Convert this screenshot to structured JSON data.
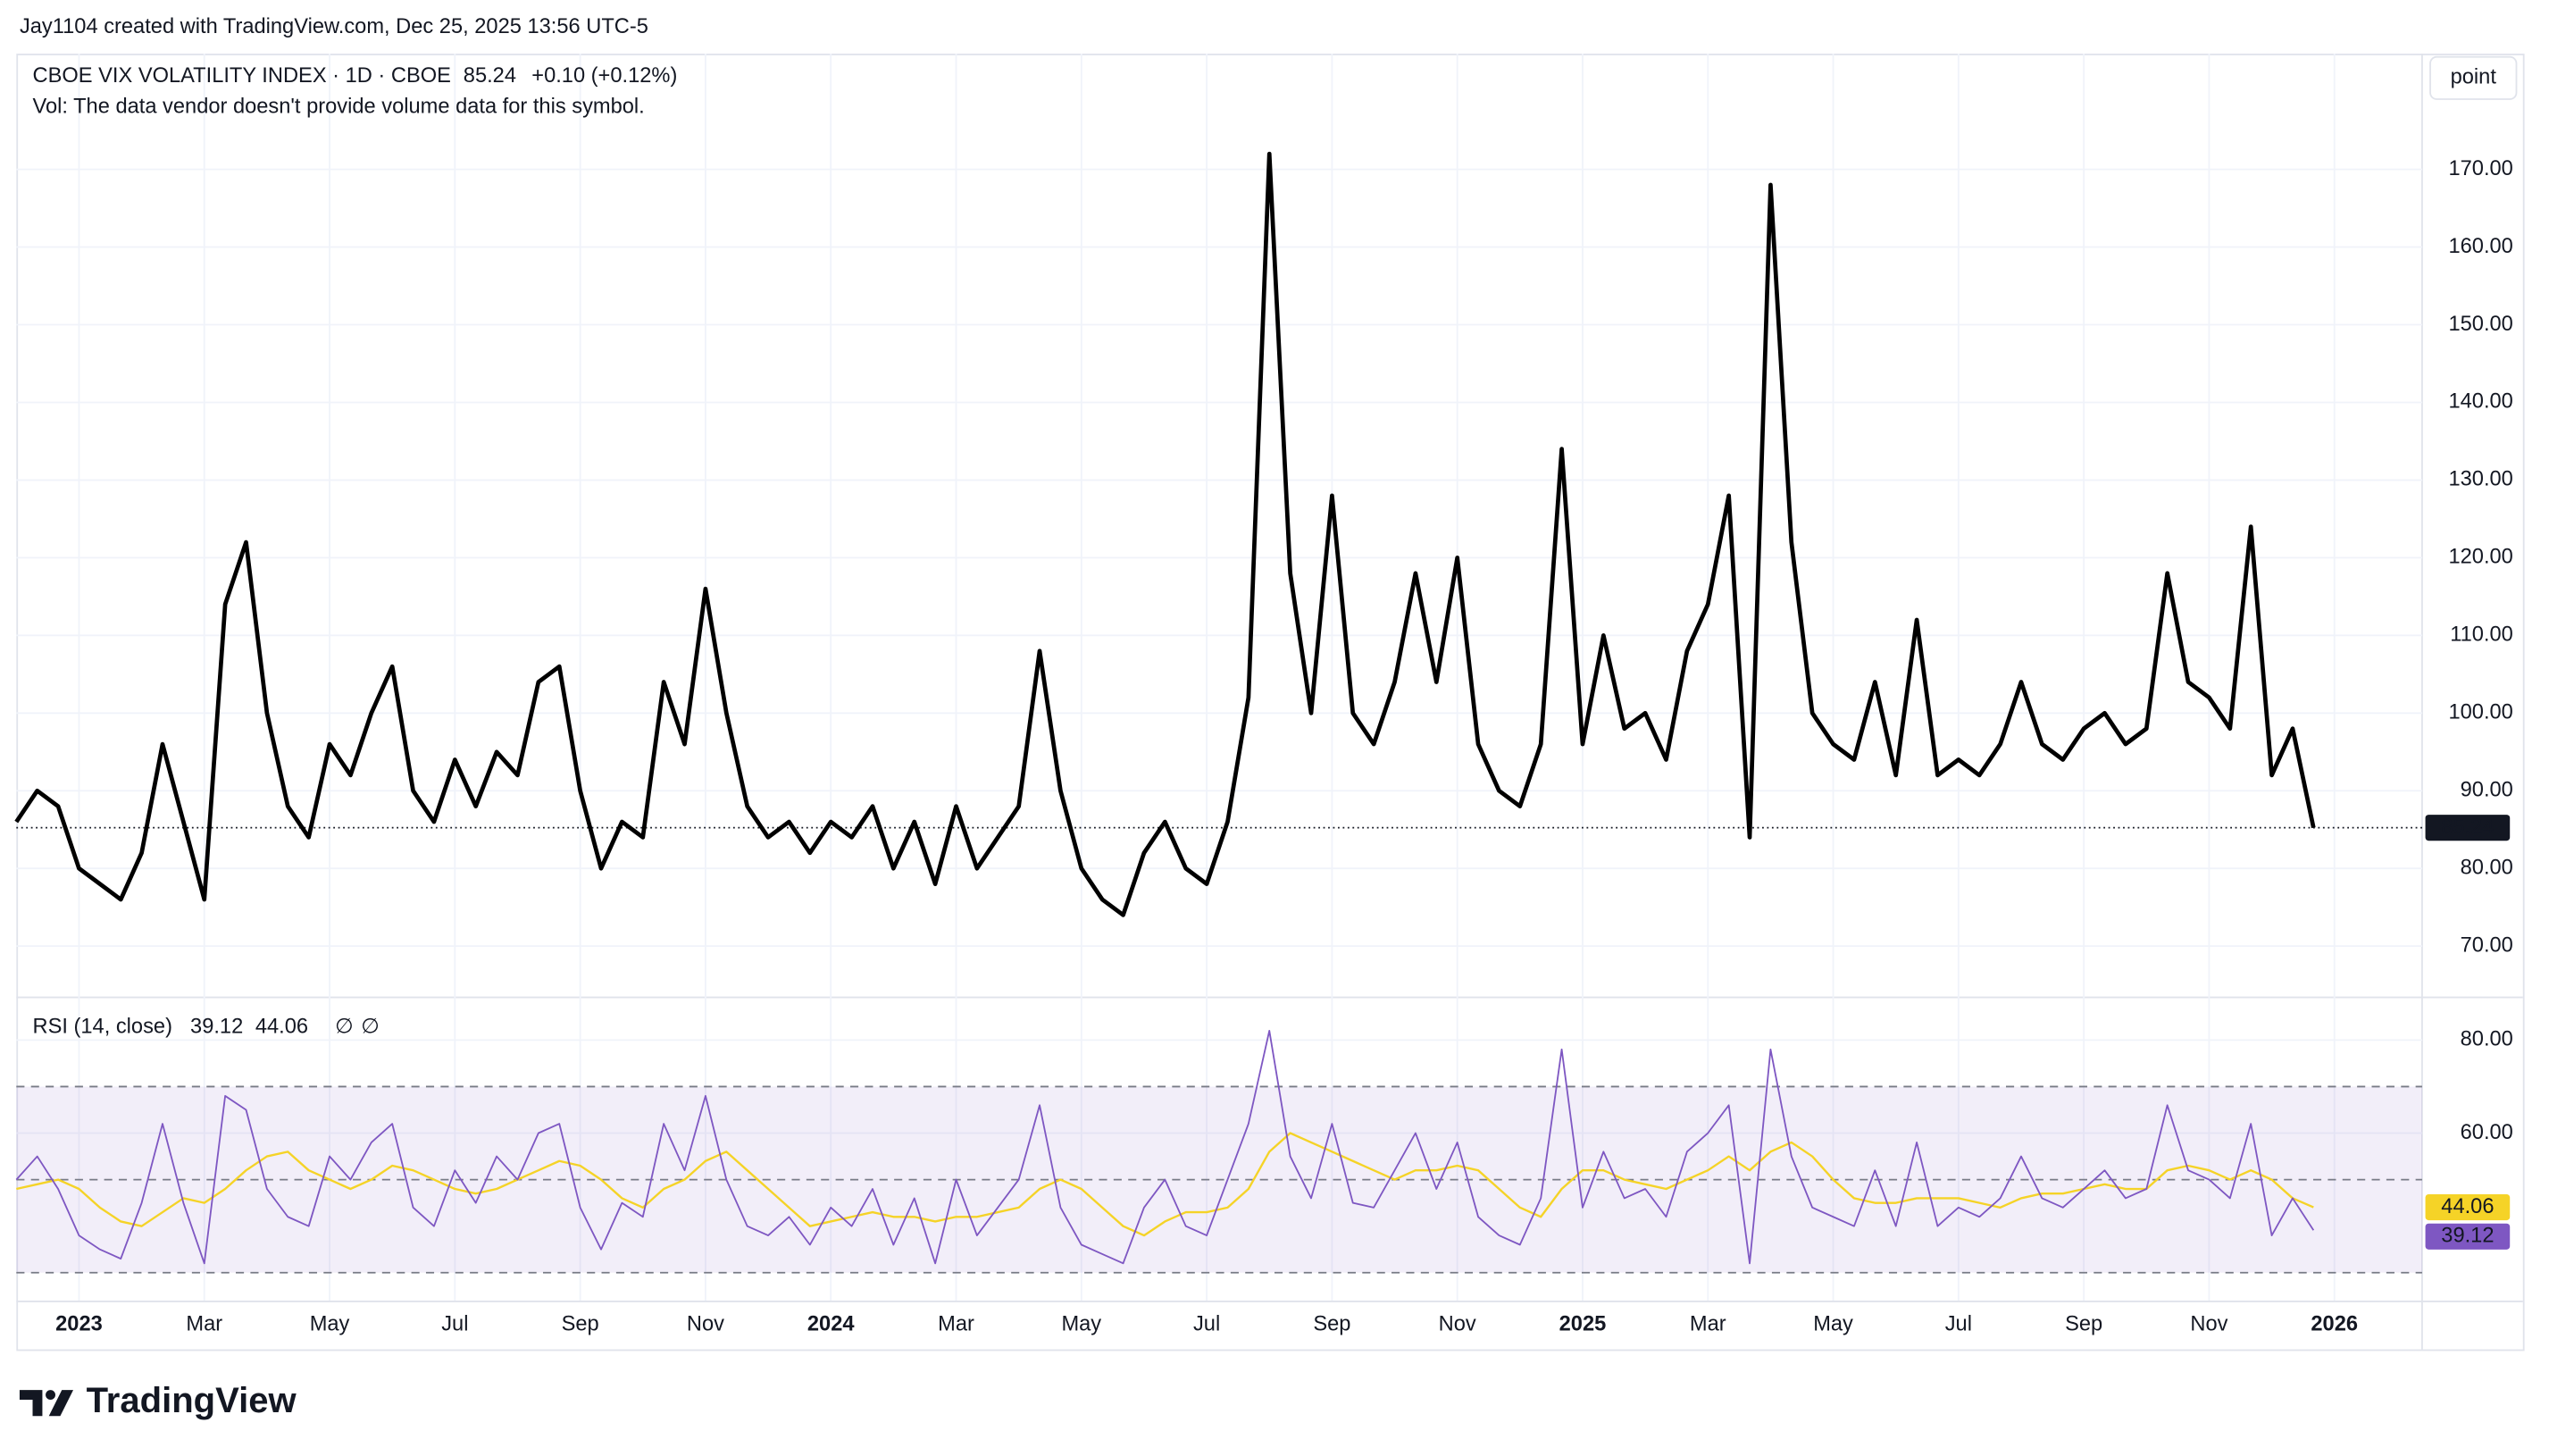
{
  "header": {
    "credit": "Jay1104 created with TradingView.com, Dec 25, 2025 13:56 UTC-5",
    "button": "point"
  },
  "logo": "TradingView",
  "chart_data": [
    {
      "type": "line",
      "title": "CBOE VIX VOLATILITY INDEX · 1D · CBOE",
      "last_price": 85.24,
      "change": "+0.10 (+0.12%)",
      "subtitle": "Vol: The data vendor doesn't provide volume data for this symbol.",
      "color": "#000000",
      "values": [
        86,
        90,
        88,
        80,
        78,
        76,
        82,
        96,
        86,
        76,
        114,
        122,
        100,
        88,
        84,
        96,
        92,
        100,
        106,
        90,
        86,
        94,
        88,
        95,
        92,
        104,
        106,
        90,
        80,
        86,
        84,
        104,
        96,
        116,
        100,
        88,
        84,
        86,
        82,
        86,
        84,
        88,
        80,
        86,
        78,
        88,
        80,
        84,
        88,
        108,
        90,
        80,
        76,
        74,
        82,
        86,
        80,
        78,
        86,
        102,
        172,
        118,
        100,
        128,
        100,
        96,
        104,
        118,
        104,
        120,
        96,
        90,
        88,
        96,
        134,
        96,
        110,
        98,
        100,
        94,
        108,
        114,
        128,
        84,
        168,
        122,
        100,
        96,
        94,
        104,
        92,
        112,
        92,
        94,
        92,
        96,
        104,
        96,
        94,
        98,
        100,
        96,
        98,
        118,
        104,
        102,
        98,
        124,
        92,
        98,
        85.24
      ],
      "xlim": [
        0,
        115.2
      ],
      "xticks": [
        {
          "value": 3,
          "label": "2023"
        },
        {
          "value": 9,
          "label": "Mar"
        },
        {
          "value": 15,
          "label": "May"
        },
        {
          "value": 21,
          "label": "Jul"
        },
        {
          "value": 27,
          "label": "Sep"
        },
        {
          "value": 33,
          "label": "Nov"
        },
        {
          "value": 39,
          "label": "2024"
        },
        {
          "value": 45,
          "label": "Mar"
        },
        {
          "value": 51,
          "label": "May"
        },
        {
          "value": 57,
          "label": "Jul"
        },
        {
          "value": 63,
          "label": "Sep"
        },
        {
          "value": 69,
          "label": "Nov"
        },
        {
          "value": 75,
          "label": "2025"
        },
        {
          "value": 81,
          "label": "Mar"
        },
        {
          "value": 87,
          "label": "May"
        },
        {
          "value": 93,
          "label": "Jul"
        },
        {
          "value": 99,
          "label": "Sep"
        },
        {
          "value": 105,
          "label": "Nov"
        },
        {
          "value": 111,
          "label": "2026"
        }
      ],
      "ylim": [
        63.5,
        184.9
      ],
      "yticks": [
        {
          "value": 70,
          "label": "70.00"
        },
        {
          "value": 80,
          "label": "80.00"
        },
        {
          "value": 90,
          "label": "90.00"
        },
        {
          "value": 100,
          "label": "100.00"
        },
        {
          "value": 110,
          "label": "110.00"
        },
        {
          "value": 120,
          "label": "120.00"
        },
        {
          "value": 130,
          "label": "130.00"
        },
        {
          "value": 140,
          "label": "140.00"
        },
        {
          "value": 150,
          "label": "150.00"
        },
        {
          "value": 160,
          "label": "160.00"
        },
        {
          "value": 170,
          "label": "170.00"
        }
      ],
      "grid": true
    },
    {
      "type": "line",
      "title": "RSI (14, close)",
      "flags": [
        "∅",
        "∅"
      ],
      "series": [
        {
          "color": "#7e57c2",
          "last": 39.12,
          "values": [
            50,
            55,
            48,
            38,
            35,
            33,
            45,
            62,
            45,
            32,
            68,
            65,
            48,
            42,
            40,
            55,
            50,
            58,
            62,
            44,
            40,
            52,
            45,
            55,
            50,
            60,
            62,
            44,
            35,
            45,
            42,
            62,
            52,
            68,
            50,
            40,
            38,
            42,
            36,
            44,
            40,
            48,
            36,
            46,
            32,
            50,
            38,
            44,
            50,
            66,
            44,
            36,
            34,
            32,
            44,
            50,
            40,
            38,
            50,
            62,
            82,
            55,
            46,
            62,
            45,
            44,
            52,
            60,
            48,
            58,
            42,
            38,
            36,
            46,
            78,
            44,
            56,
            46,
            48,
            42,
            56,
            60,
            66,
            32,
            78,
            55,
            44,
            42,
            40,
            52,
            40,
            58,
            40,
            44,
            42,
            46,
            55,
            46,
            44,
            48,
            52,
            46,
            48,
            66,
            52,
            50,
            46,
            62,
            38,
            46,
            39.12
          ]
        },
        {
          "color": "#f5d327",
          "last": 44.06,
          "values": [
            48,
            49,
            50,
            48,
            44,
            41,
            40,
            43,
            46,
            45,
            48,
            52,
            55,
            56,
            52,
            50,
            48,
            50,
            53,
            52,
            50,
            48,
            47,
            48,
            50,
            52,
            54,
            53,
            50,
            46,
            44,
            48,
            50,
            54,
            56,
            52,
            48,
            44,
            40,
            41,
            42,
            43,
            42,
            42,
            41,
            42,
            42,
            43,
            44,
            48,
            50,
            48,
            44,
            40,
            38,
            41,
            43,
            43,
            44,
            48,
            56,
            60,
            58,
            56,
            54,
            52,
            50,
            52,
            52,
            53,
            52,
            48,
            44,
            42,
            48,
            52,
            52,
            50,
            49,
            48,
            50,
            52,
            55,
            52,
            56,
            58,
            55,
            50,
            46,
            45,
            45,
            46,
            46,
            46,
            45,
            44,
            46,
            47,
            47,
            48,
            49,
            48,
            48,
            52,
            53,
            52,
            50,
            52,
            50,
            46,
            44.06
          ]
        }
      ],
      "levels": [
        70,
        50,
        30
      ],
      "band_color": "#7e57c2",
      "ylim": [
        24,
        89
      ],
      "yticks": [
        {
          "value": 60,
          "label": "60.00"
        },
        {
          "value": 80,
          "label": "80.00"
        }
      ],
      "grid": true
    }
  ]
}
